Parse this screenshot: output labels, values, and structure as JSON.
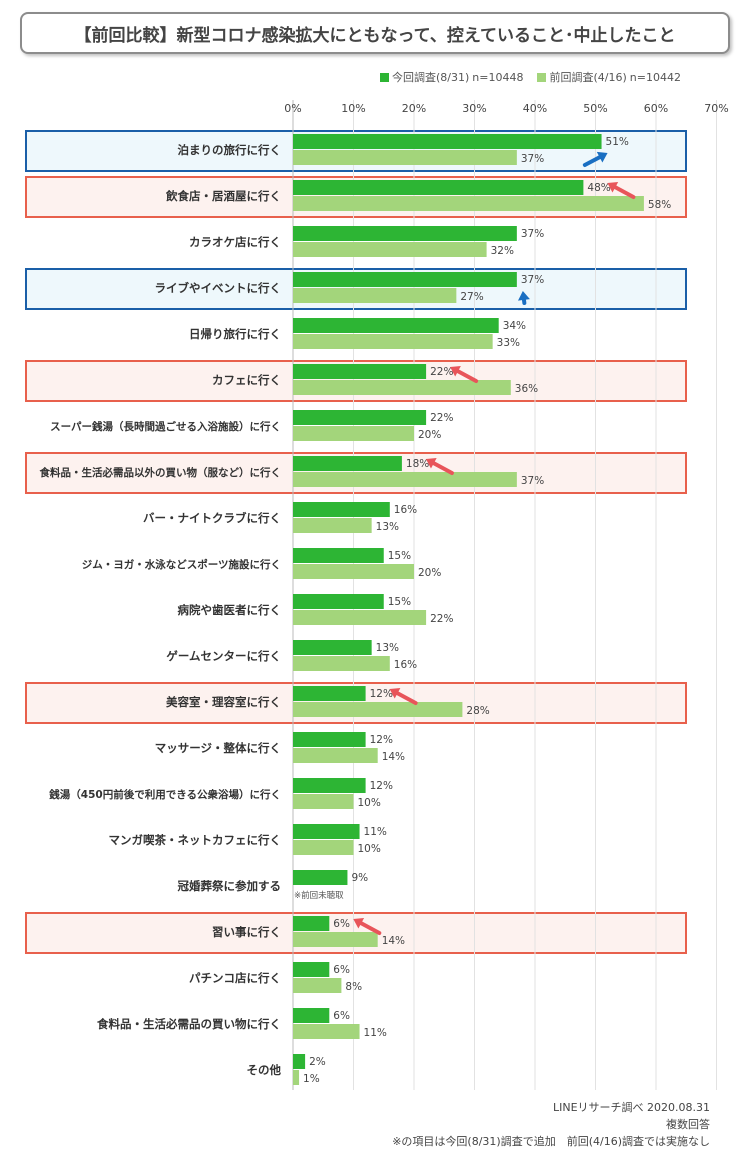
{
  "title": "【前回比較】新型コロナ感染拡大にともなって、控えていること･中止したこと",
  "legend": {
    "current": "今回調査(8/31)",
    "current_n": "n=10448",
    "previous": "前回調査(4/16)",
    "previous_n": "n=10442"
  },
  "colors": {
    "current": "#2db534",
    "previous": "#a3d57b",
    "blue_box": "#1a5fa8",
    "red_box": "#e8604c",
    "blue_fill": "#eef8fc",
    "red_fill": "#fdf2ef",
    "blue_arrow": "#1a6fc2",
    "red_arrow": "#e8555a"
  },
  "chart_data": {
    "type": "bar",
    "orientation": "horizontal",
    "x_ticks": [
      "0%",
      "10%",
      "20%",
      "30%",
      "40%",
      "50%",
      "60%",
      "70%"
    ],
    "xlim": [
      0,
      70
    ],
    "grid": true,
    "legend_position": "top-right",
    "series": [
      {
        "name": "今回調査(8/31)",
        "key": "current"
      },
      {
        "name": "前回調査(4/16)",
        "key": "previous"
      }
    ],
    "categories": [
      {
        "label": "泊まりの旅行に行く",
        "current": 51,
        "previous": 37,
        "highlight": "blue",
        "arrow": "up"
      },
      {
        "label": "飲食店・居酒屋に行く",
        "current": 48,
        "previous": 58,
        "highlight": "red",
        "arrow": "down"
      },
      {
        "label": "カラオケ店に行く",
        "current": 37,
        "previous": 32
      },
      {
        "label": "ライブやイベントに行く",
        "current": 37,
        "previous": 27,
        "highlight": "blue",
        "arrow": "up"
      },
      {
        "label": "日帰り旅行に行く",
        "current": 34,
        "previous": 33
      },
      {
        "label": "カフェに行く",
        "current": 22,
        "previous": 36,
        "highlight": "red",
        "arrow": "down"
      },
      {
        "label": "スーパー銭湯（長時間過ごせる入浴施設）に行く",
        "current": 22,
        "previous": 20
      },
      {
        "label": "食料品・生活必需品以外の買い物（服など）に行く",
        "current": 18,
        "previous": 37,
        "highlight": "red",
        "arrow": "down"
      },
      {
        "label": "バー・ナイトクラブに行く",
        "current": 16,
        "previous": 13
      },
      {
        "label": "ジム・ヨガ・水泳などスポーツ施設に行く",
        "current": 15,
        "previous": 20
      },
      {
        "label": "病院や歯医者に行く",
        "current": 15,
        "previous": 22
      },
      {
        "label": "ゲームセンターに行く",
        "current": 13,
        "previous": 16
      },
      {
        "label": "美容室・理容室に行く",
        "current": 12,
        "previous": 28,
        "highlight": "red",
        "arrow": "down"
      },
      {
        "label": "マッサージ・整体に行く",
        "current": 12,
        "previous": 14
      },
      {
        "label": "銭湯（450円前後で利用できる公衆浴場）に行く",
        "current": 12,
        "previous": 10
      },
      {
        "label": "マンガ喫茶・ネットカフェに行く",
        "current": 11,
        "previous": 10
      },
      {
        "label": "冠婚葬祭に参加する",
        "current": 9,
        "previous": null,
        "note": "※前回未聴取"
      },
      {
        "label": "習い事に行く",
        "current": 6,
        "previous": 14,
        "highlight": "red",
        "arrow": "down"
      },
      {
        "label": "パチンコ店に行く",
        "current": 6,
        "previous": 8
      },
      {
        "label": "食料品・生活必需品の買い物に行く",
        "current": 6,
        "previous": 11
      },
      {
        "label": "その他",
        "current": 2,
        "previous": 1
      }
    ]
  },
  "footer": {
    "source": "LINEリサーチ調べ 2020.08.31",
    "answer_type": "複数回答",
    "note": "※の項目は今回(8/31)調査で追加　前回(4/16)調査では実施なし"
  }
}
